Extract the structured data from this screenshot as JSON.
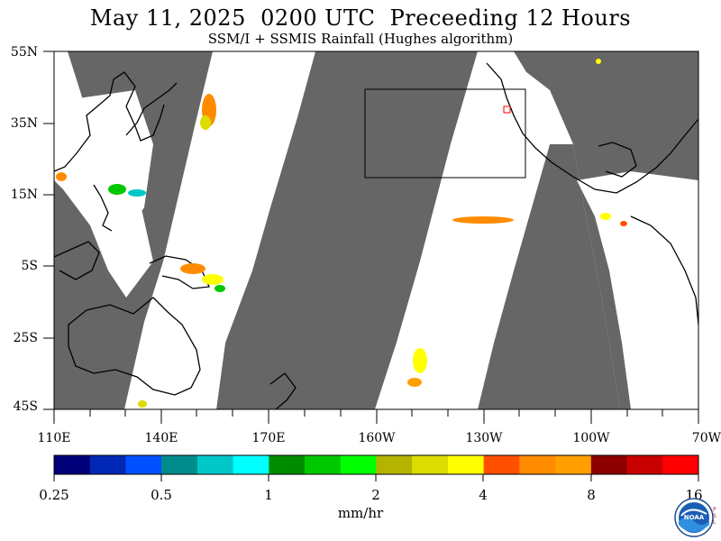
{
  "header": {
    "title": "May 11, 2025  0200 UTC  Preceeding 12 Hours",
    "subtitle": "SSM/I + SSMIS Rainfall (Hughes algorithm)"
  },
  "map": {
    "land_color": "#666666",
    "no_data_color": "#ffffff",
    "lat_labels": [
      "55N",
      "35N",
      "15N",
      "5S",
      "25S",
      "45S"
    ],
    "lon_labels": [
      "110E",
      "140E",
      "170E",
      "160W",
      "130W",
      "100W",
      "70W"
    ]
  },
  "colorbar": {
    "colors": [
      "#000078",
      "#0028b4",
      "#0050ff",
      "#008c8c",
      "#00c8c8",
      "#00ffff",
      "#008c00",
      "#00c800",
      "#00ff00",
      "#b4b400",
      "#dcdc00",
      "#ffff00",
      "#ff5000",
      "#ff8c00",
      "#ffa000",
      "#8c0000",
      "#c80000",
      "#ff0000"
    ],
    "tick_labels": [
      "0.25",
      "0.5",
      "1",
      "2",
      "4",
      "8",
      "16"
    ],
    "units": "mm/hr"
  },
  "logo": {
    "text": "NOAA",
    "side_letters": "PSL"
  }
}
